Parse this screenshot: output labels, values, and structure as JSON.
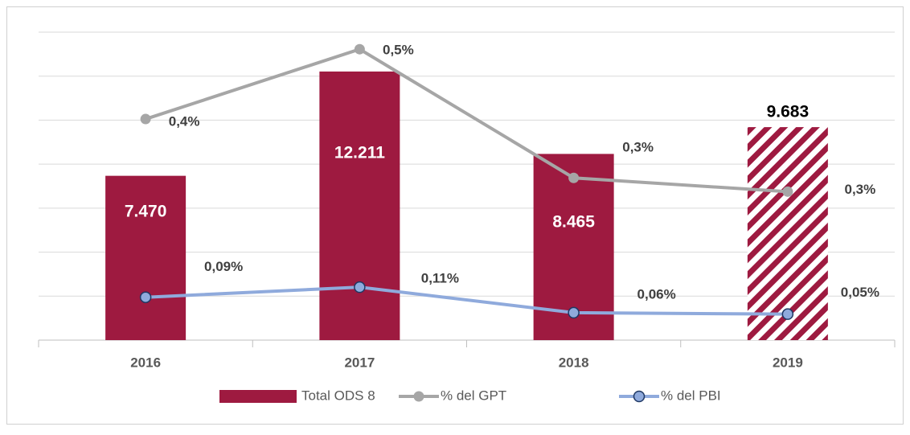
{
  "chart_data": {
    "type": "bar",
    "categories": [
      "2016",
      "2017",
      "2018",
      "2019"
    ],
    "ylim": [
      0,
      14000
    ],
    "yticks": [
      0,
      2000,
      4000,
      6000,
      8000,
      10000,
      12000,
      14000
    ],
    "grid": true,
    "y2lim": [
      0,
      0.56
    ],
    "y3lim": [
      0,
      0.64
    ],
    "legend": "bottom",
    "series": [
      {
        "name": "Total ODS 8",
        "type": "bar",
        "color": "#9e1a40",
        "values": [
          7470,
          12211,
          8465,
          9683
        ],
        "value_labels": [
          "7.470",
          "12.211",
          "8.465",
          "9.683"
        ],
        "hatched": [
          false,
          false,
          false,
          true
        ]
      },
      {
        "name": "% del GPT",
        "type": "line",
        "axis": "y2",
        "color": "#a6a6a6",
        "values": [
          0.402,
          0.529,
          0.295,
          0.27
        ],
        "value_labels": [
          "0,4%",
          "0,5%",
          "0,3%",
          "0,3%"
        ]
      },
      {
        "name": "% del PBI",
        "type": "line",
        "axis": "y3",
        "color": "#8faadc",
        "values": [
          0.089,
          0.11,
          0.057,
          0.054
        ],
        "value_labels": [
          "0,09%",
          "0,11%",
          "0,06%",
          "0,05%"
        ]
      }
    ]
  }
}
